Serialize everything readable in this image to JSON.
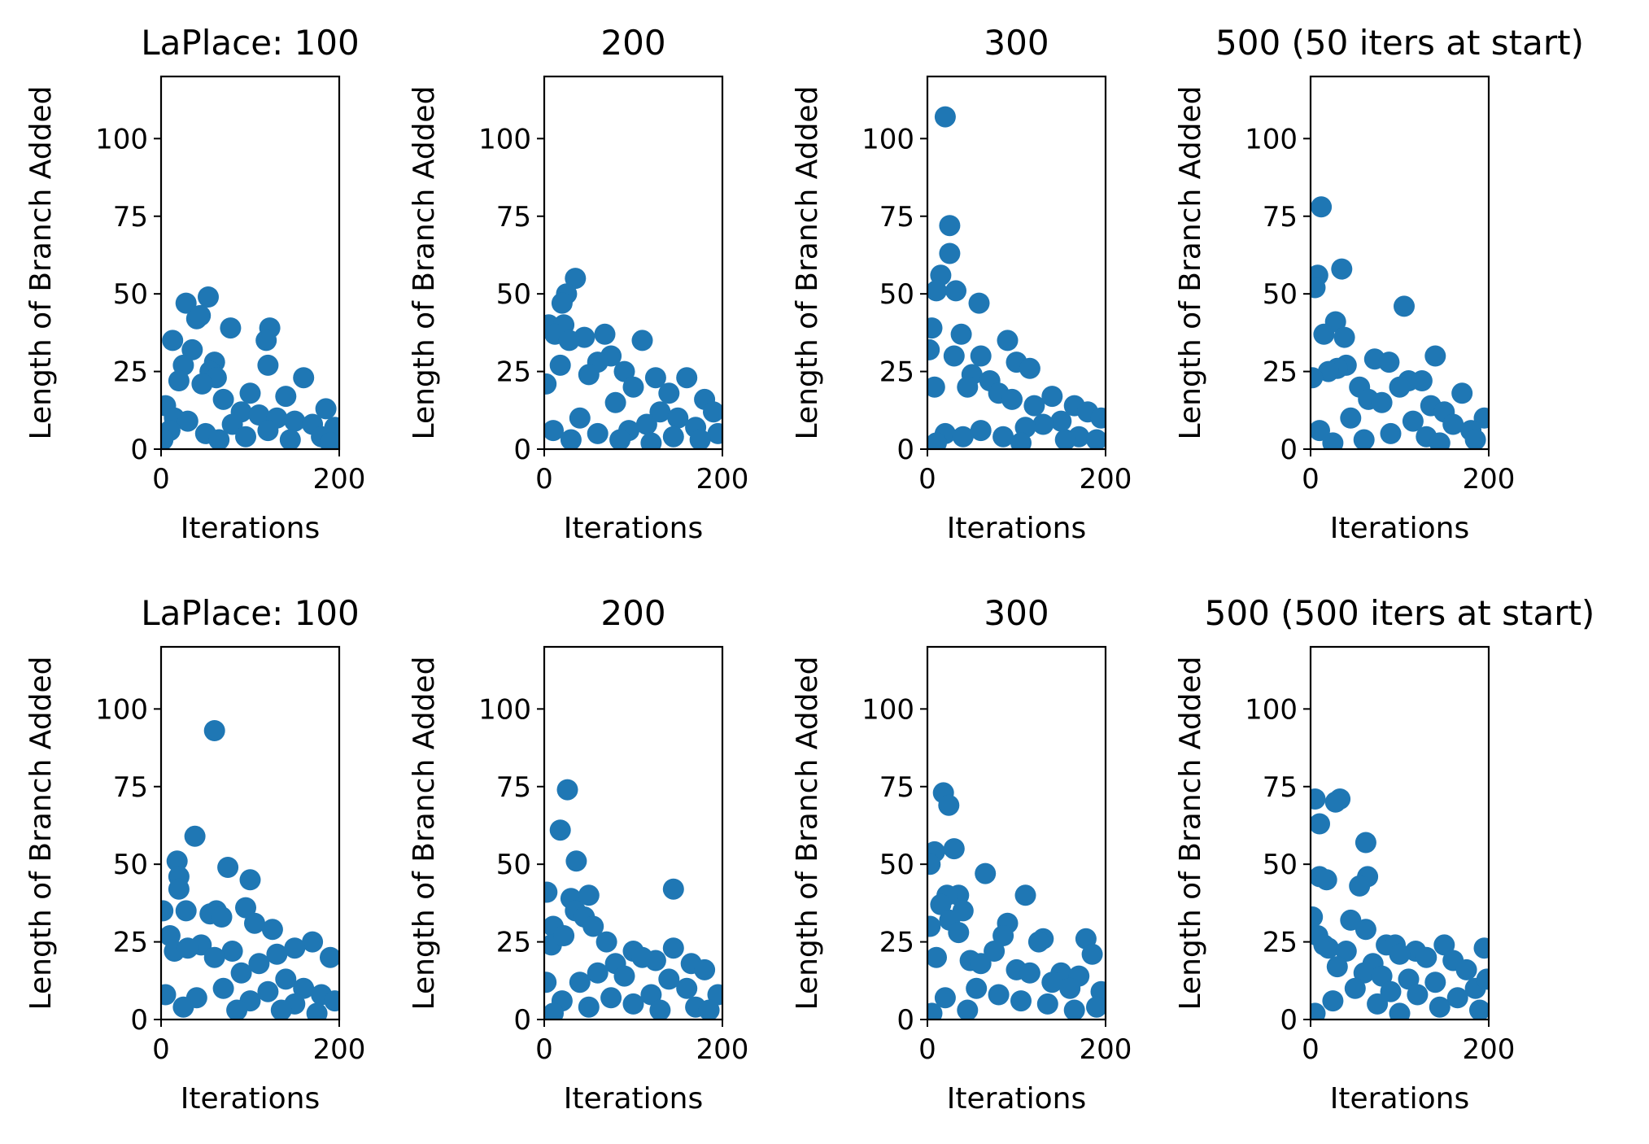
{
  "figure": {
    "marker_color": "#1f77b4"
  },
  "chart_data": [
    {
      "type": "scatter",
      "title": "LaPlace: 100",
      "xlabel": "Iterations",
      "ylabel": "Length of Branch Added",
      "xlim": [
        0,
        200
      ],
      "ylim": [
        0,
        120
      ],
      "xticks": [
        "0",
        "200"
      ],
      "yticks": [
        "0",
        "25",
        "50",
        "75",
        "100"
      ],
      "points": [
        [
          28,
          47
        ],
        [
          53,
          49
        ],
        [
          40,
          42
        ],
        [
          44,
          43
        ],
        [
          13,
          35
        ],
        [
          35,
          32
        ],
        [
          122,
          39
        ],
        [
          78,
          39
        ],
        [
          118,
          35
        ],
        [
          120,
          27
        ],
        [
          60,
          28
        ],
        [
          25,
          27
        ],
        [
          55,
          25
        ],
        [
          62,
          23
        ],
        [
          160,
          23
        ],
        [
          20,
          22
        ],
        [
          46,
          21
        ],
        [
          100,
          18
        ],
        [
          140,
          17
        ],
        [
          70,
          16
        ],
        [
          5,
          14
        ],
        [
          185,
          13
        ],
        [
          90,
          12
        ],
        [
          110,
          11
        ],
        [
          130,
          10
        ],
        [
          150,
          9
        ],
        [
          170,
          8
        ],
        [
          195,
          7
        ],
        [
          15,
          10
        ],
        [
          30,
          9
        ],
        [
          80,
          8
        ],
        [
          10,
          6
        ],
        [
          50,
          5
        ],
        [
          120,
          6
        ],
        [
          180,
          4
        ],
        [
          2,
          3
        ],
        [
          65,
          3
        ],
        [
          95,
          4
        ],
        [
          145,
          3
        ],
        [
          190,
          2
        ]
      ]
    },
    {
      "type": "scatter",
      "title": "200",
      "xlabel": "",
      "ylabel": "Length of Branch Added",
      "xlim": [
        0,
        200
      ],
      "ylim": [
        0,
        120
      ],
      "xticks": [
        "0",
        "200"
      ],
      "yticks": [
        "0",
        "25",
        "50",
        "75",
        "100"
      ],
      "points": [
        [
          35,
          55
        ],
        [
          25,
          50
        ],
        [
          20,
          47
        ],
        [
          5,
          40
        ],
        [
          22,
          40
        ],
        [
          12,
          37
        ],
        [
          45,
          36
        ],
        [
          28,
          35
        ],
        [
          68,
          37
        ],
        [
          110,
          35
        ],
        [
          75,
          30
        ],
        [
          60,
          28
        ],
        [
          18,
          27
        ],
        [
          90,
          25
        ],
        [
          50,
          24
        ],
        [
          125,
          23
        ],
        [
          160,
          23
        ],
        [
          100,
          20
        ],
        [
          140,
          18
        ],
        [
          180,
          16
        ],
        [
          2,
          21
        ],
        [
          80,
          15
        ],
        [
          130,
          12
        ],
        [
          150,
          10
        ],
        [
          190,
          12
        ],
        [
          40,
          10
        ],
        [
          115,
          8
        ],
        [
          170,
          7
        ],
        [
          10,
          6
        ],
        [
          60,
          5
        ],
        [
          95,
          6
        ],
        [
          145,
          4
        ],
        [
          195,
          5
        ],
        [
          30,
          3
        ],
        [
          175,
          3
        ],
        [
          85,
          3
        ],
        [
          120,
          2
        ]
      ]
    },
    {
      "type": "scatter",
      "title": "300",
      "xlabel": "",
      "ylabel": "Length of Branch Added",
      "xlim": [
        0,
        200
      ],
      "ylim": [
        0,
        120
      ],
      "xticks": [
        "0",
        "200"
      ],
      "yticks": [
        "0",
        "25",
        "50",
        "75",
        "100"
      ],
      "points": [
        [
          20,
          107
        ],
        [
          25,
          72
        ],
        [
          25,
          63
        ],
        [
          15,
          56
        ],
        [
          10,
          51
        ],
        [
          32,
          51
        ],
        [
          58,
          47
        ],
        [
          5,
          39
        ],
        [
          38,
          37
        ],
        [
          2,
          32
        ],
        [
          30,
          30
        ],
        [
          90,
          35
        ],
        [
          60,
          30
        ],
        [
          100,
          28
        ],
        [
          115,
          26
        ],
        [
          50,
          24
        ],
        [
          70,
          22
        ],
        [
          45,
          20
        ],
        [
          80,
          18
        ],
        [
          140,
          17
        ],
        [
          95,
          16
        ],
        [
          120,
          14
        ],
        [
          165,
          14
        ],
        [
          8,
          20
        ],
        [
          180,
          12
        ],
        [
          195,
          10
        ],
        [
          150,
          9
        ],
        [
          130,
          8
        ],
        [
          110,
          7
        ],
        [
          60,
          6
        ],
        [
          20,
          5
        ],
        [
          40,
          4
        ],
        [
          85,
          4
        ],
        [
          170,
          4
        ],
        [
          190,
          3
        ],
        [
          10,
          2
        ],
        [
          105,
          2
        ],
        [
          155,
          3
        ]
      ]
    },
    {
      "type": "scatter",
      "title": "500 (50 iters at start)",
      "xlabel": "",
      "ylabel": "Length of Branch Added",
      "xlim": [
        0,
        200
      ],
      "ylim": [
        0,
        120
      ],
      "xticks": [
        "0",
        "200"
      ],
      "yticks": [
        "0",
        "25",
        "50",
        "75",
        "100"
      ],
      "points": [
        [
          12,
          78
        ],
        [
          35,
          58
        ],
        [
          8,
          56
        ],
        [
          5,
          52
        ],
        [
          105,
          46
        ],
        [
          28,
          41
        ],
        [
          15,
          37
        ],
        [
          38,
          36
        ],
        [
          140,
          30
        ],
        [
          72,
          29
        ],
        [
          88,
          28
        ],
        [
          40,
          27
        ],
        [
          30,
          26
        ],
        [
          20,
          25
        ],
        [
          2,
          23
        ],
        [
          110,
          22
        ],
        [
          125,
          22
        ],
        [
          100,
          20
        ],
        [
          55,
          20
        ],
        [
          170,
          18
        ],
        [
          65,
          16
        ],
        [
          80,
          15
        ],
        [
          135,
          14
        ],
        [
          150,
          12
        ],
        [
          195,
          10
        ],
        [
          45,
          10
        ],
        [
          115,
          9
        ],
        [
          160,
          8
        ],
        [
          180,
          6
        ],
        [
          10,
          6
        ],
        [
          90,
          5
        ],
        [
          130,
          4
        ],
        [
          60,
          3
        ],
        [
          185,
          3
        ],
        [
          25,
          2
        ],
        [
          145,
          2
        ]
      ]
    },
    {
      "type": "scatter",
      "title": "LaPlace: 100",
      "xlabel": "Iterations",
      "ylabel": "Length of Branch Added",
      "xlim": [
        0,
        200
      ],
      "ylim": [
        0,
        120
      ],
      "xticks": [
        "0",
        "200"
      ],
      "yticks": [
        "0",
        "25",
        "50",
        "75",
        "100"
      ],
      "points": [
        [
          60,
          93
        ],
        [
          38,
          59
        ],
        [
          18,
          51
        ],
        [
          75,
          49
        ],
        [
          20,
          46
        ],
        [
          100,
          45
        ],
        [
          20,
          42
        ],
        [
          62,
          35
        ],
        [
          28,
          35
        ],
        [
          95,
          36
        ],
        [
          55,
          34
        ],
        [
          2,
          35
        ],
        [
          68,
          33
        ],
        [
          10,
          27
        ],
        [
          45,
          24
        ],
        [
          125,
          29
        ],
        [
          105,
          31
        ],
        [
          15,
          22
        ],
        [
          30,
          23
        ],
        [
          170,
          25
        ],
        [
          150,
          23
        ],
        [
          80,
          22
        ],
        [
          130,
          21
        ],
        [
          190,
          20
        ],
        [
          60,
          20
        ],
        [
          110,
          18
        ],
        [
          140,
          13
        ],
        [
          90,
          15
        ],
        [
          160,
          10
        ],
        [
          180,
          8
        ],
        [
          120,
          9
        ],
        [
          70,
          10
        ],
        [
          5,
          8
        ],
        [
          40,
          7
        ],
        [
          100,
          6
        ],
        [
          150,
          5
        ],
        [
          195,
          6
        ],
        [
          25,
          4
        ],
        [
          85,
          3
        ],
        [
          135,
          3
        ],
        [
          175,
          2
        ]
      ]
    },
    {
      "type": "scatter",
      "title": "200",
      "xlabel": "",
      "ylabel": "Length of Branch Added",
      "xlim": [
        0,
        200
      ],
      "ylim": [
        0,
        120
      ],
      "xticks": [
        "0",
        "200"
      ],
      "yticks": [
        "0",
        "25",
        "50",
        "75",
        "100"
      ],
      "points": [
        [
          26,
          74
        ],
        [
          18,
          61
        ],
        [
          36,
          51
        ],
        [
          145,
          42
        ],
        [
          3,
          41
        ],
        [
          30,
          39
        ],
        [
          50,
          40
        ],
        [
          35,
          35
        ],
        [
          45,
          33
        ],
        [
          55,
          30
        ],
        [
          10,
          30
        ],
        [
          8,
          24
        ],
        [
          22,
          27
        ],
        [
          145,
          23
        ],
        [
          70,
          25
        ],
        [
          100,
          22
        ],
        [
          110,
          20
        ],
        [
          165,
          18
        ],
        [
          180,
          16
        ],
        [
          125,
          19
        ],
        [
          80,
          18
        ],
        [
          60,
          15
        ],
        [
          90,
          14
        ],
        [
          140,
          13
        ],
        [
          2,
          12
        ],
        [
          40,
          12
        ],
        [
          160,
          10
        ],
        [
          195,
          8
        ],
        [
          120,
          8
        ],
        [
          75,
          7
        ],
        [
          20,
          6
        ],
        [
          100,
          5
        ],
        [
          170,
          4
        ],
        [
          50,
          4
        ],
        [
          185,
          3
        ],
        [
          130,
          3
        ],
        [
          10,
          2
        ]
      ]
    },
    {
      "type": "scatter",
      "title": "300",
      "xlabel": "",
      "ylabel": "Length of Branch Added",
      "xlim": [
        0,
        200
      ],
      "ylim": [
        0,
        120
      ],
      "xticks": [
        "0",
        "200"
      ],
      "yticks": [
        "0",
        "25",
        "50",
        "75",
        "100"
      ],
      "points": [
        [
          18,
          73
        ],
        [
          24,
          69
        ],
        [
          30,
          55
        ],
        [
          8,
          54
        ],
        [
          3,
          50
        ],
        [
          65,
          47
        ],
        [
          110,
          40
        ],
        [
          35,
          40
        ],
        [
          22,
          40
        ],
        [
          15,
          37
        ],
        [
          40,
          35
        ],
        [
          25,
          32
        ],
        [
          90,
          31
        ],
        [
          3,
          30
        ],
        [
          35,
          28
        ],
        [
          85,
          27
        ],
        [
          130,
          26
        ],
        [
          125,
          25
        ],
        [
          178,
          26
        ],
        [
          185,
          21
        ],
        [
          75,
          22
        ],
        [
          10,
          20
        ],
        [
          48,
          19
        ],
        [
          60,
          18
        ],
        [
          100,
          16
        ],
        [
          115,
          15
        ],
        [
          150,
          15
        ],
        [
          170,
          14
        ],
        [
          140,
          12
        ],
        [
          160,
          10
        ],
        [
          195,
          9
        ],
        [
          55,
          10
        ],
        [
          80,
          8
        ],
        [
          20,
          7
        ],
        [
          105,
          6
        ],
        [
          135,
          5
        ],
        [
          190,
          4
        ],
        [
          45,
          3
        ],
        [
          165,
          3
        ],
        [
          5,
          2
        ]
      ]
    },
    {
      "type": "scatter",
      "title": "500 (500 iters at start)",
      "xlabel": "",
      "ylabel": "Length of Branch Added",
      "xlim": [
        0,
        200
      ],
      "ylim": [
        0,
        120
      ],
      "xticks": [
        "0",
        "200"
      ],
      "yticks": [
        "0",
        "25",
        "50",
        "75",
        "100"
      ],
      "points": [
        [
          5,
          71
        ],
        [
          33,
          71
        ],
        [
          10,
          63
        ],
        [
          28,
          70
        ],
        [
          62,
          57
        ],
        [
          10,
          46
        ],
        [
          64,
          46
        ],
        [
          18,
          45
        ],
        [
          55,
          43
        ],
        [
          2,
          33
        ],
        [
          45,
          32
        ],
        [
          62,
          29
        ],
        [
          8,
          27
        ],
        [
          15,
          24
        ],
        [
          20,
          23
        ],
        [
          40,
          22
        ],
        [
          85,
          24
        ],
        [
          95,
          24
        ],
        [
          118,
          22
        ],
        [
          150,
          24
        ],
        [
          195,
          23
        ],
        [
          100,
          21
        ],
        [
          70,
          18
        ],
        [
          130,
          20
        ],
        [
          160,
          19
        ],
        [
          175,
          16
        ],
        [
          30,
          17
        ],
        [
          60,
          15
        ],
        [
          80,
          14
        ],
        [
          110,
          13
        ],
        [
          140,
          12
        ],
        [
          185,
          10
        ],
        [
          198,
          13
        ],
        [
          50,
          10
        ],
        [
          90,
          9
        ],
        [
          120,
          8
        ],
        [
          165,
          7
        ],
        [
          25,
          6
        ],
        [
          75,
          5
        ],
        [
          145,
          4
        ],
        [
          190,
          3
        ],
        [
          5,
          2
        ],
        [
          100,
          2
        ]
      ]
    }
  ]
}
